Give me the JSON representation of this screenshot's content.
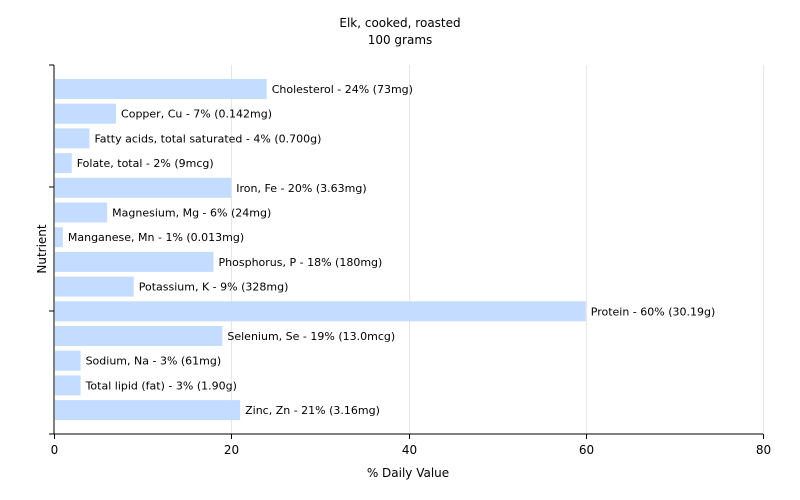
{
  "chart_data": {
    "type": "bar",
    "orientation": "horizontal",
    "title": "Elk, cooked, roasted",
    "subtitle": "100 grams",
    "xlabel": "% Daily Value",
    "ylabel": "Nutrient",
    "xlim": [
      0,
      80
    ],
    "xticks": [
      0,
      20,
      40,
      60,
      80
    ],
    "grid": true,
    "bar_color": "#c4dcff",
    "categories": [
      "Cholesterol",
      "Copper, Cu",
      "Fatty acids, total saturated",
      "Folate, total",
      "Iron, Fe",
      "Magnesium, Mg",
      "Manganese, Mn",
      "Phosphorus, P",
      "Potassium, K",
      "Protein",
      "Selenium, Se",
      "Sodium, Na",
      "Total lipid (fat)",
      "Zinc, Zn"
    ],
    "values": [
      24,
      7,
      4,
      2,
      20,
      6,
      1,
      18,
      9,
      60,
      19,
      3,
      3,
      21
    ],
    "data_labels": [
      "Cholesterol - 24% (73mg)",
      "Copper, Cu - 7% (0.142mg)",
      "Fatty acids, total saturated - 4% (0.700g)",
      "Folate, total - 2% (9mcg)",
      "Iron, Fe - 20% (3.63mg)",
      "Magnesium, Mg - 6% (24mg)",
      "Manganese, Mn - 1% (0.013mg)",
      "Phosphorus, P - 18% (180mg)",
      "Potassium, K - 9% (328mg)",
      "Protein - 60% (30.19g)",
      "Selenium, Se - 19% (13.0mcg)",
      "Sodium, Na - 3% (61mg)",
      "Total lipid (fat) - 3% (1.90g)",
      "Zinc, Zn - 21% (3.16mg)"
    ]
  }
}
